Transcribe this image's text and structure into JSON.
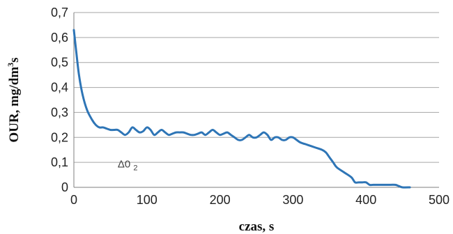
{
  "chart_data": {
    "type": "line",
    "xlabel": "czas, s",
    "ylabel_main": "OUR, mg/dm",
    "ylabel_sup": "3",
    "ylabel_tail": "s",
    "xlim": [
      0,
      500
    ],
    "ylim": [
      0,
      0.7
    ],
    "x_ticks": [
      0,
      100,
      200,
      300,
      400,
      500
    ],
    "x_tick_labels": [
      "0",
      "100",
      "200",
      "300",
      "400",
      "500"
    ],
    "y_ticks": [
      0,
      0.1,
      0.2,
      0.3,
      0.4,
      0.5,
      0.6,
      0.7
    ],
    "y_tick_labels": [
      "0",
      "0,1",
      "0,2",
      "0,3",
      "0,4",
      "0,5",
      "0,6",
      "0,7"
    ],
    "grid": "horizontal",
    "legend": "none",
    "annotation": {
      "text_main": "Δ0",
      "text_sub": "2",
      "x": 60,
      "y": 0.08
    },
    "colors": {
      "series": "#2e75b6",
      "grid": "#a6a6a6",
      "axis": "#7f7f7f"
    },
    "series": [
      {
        "x": [
          0,
          3,
          7,
          12,
          18,
          25,
          30,
          35,
          40,
          45,
          50,
          55,
          60,
          65,
          70,
          75,
          80,
          85,
          90,
          95,
          100,
          105,
          110,
          115,
          120,
          125,
          130,
          135,
          140,
          145,
          150,
          155,
          160,
          165,
          170,
          175,
          180,
          185,
          190,
          195,
          200,
          205,
          210,
          215,
          220,
          225,
          230,
          235,
          240,
          245,
          250,
          255,
          260,
          265,
          270,
          275,
          280,
          285,
          290,
          295,
          300,
          305,
          310,
          320,
          330,
          340,
          345,
          350,
          355,
          360,
          370,
          380,
          385,
          390,
          395,
          400,
          405,
          410,
          420,
          430,
          440,
          445,
          450,
          460
        ],
        "y": [
          0.63,
          0.55,
          0.45,
          0.37,
          0.31,
          0.27,
          0.25,
          0.24,
          0.24,
          0.235,
          0.23,
          0.23,
          0.23,
          0.22,
          0.21,
          0.22,
          0.24,
          0.23,
          0.22,
          0.225,
          0.24,
          0.23,
          0.21,
          0.22,
          0.23,
          0.22,
          0.21,
          0.215,
          0.22,
          0.22,
          0.22,
          0.215,
          0.21,
          0.21,
          0.215,
          0.22,
          0.21,
          0.22,
          0.23,
          0.22,
          0.21,
          0.215,
          0.22,
          0.21,
          0.2,
          0.19,
          0.19,
          0.2,
          0.21,
          0.2,
          0.2,
          0.21,
          0.22,
          0.21,
          0.19,
          0.2,
          0.2,
          0.19,
          0.19,
          0.2,
          0.2,
          0.19,
          0.18,
          0.17,
          0.16,
          0.15,
          0.14,
          0.12,
          0.1,
          0.08,
          0.06,
          0.04,
          0.02,
          0.02,
          0.02,
          0.02,
          0.01,
          0.01,
          0.01,
          0.01,
          0.01,
          0.005,
          0,
          0
        ]
      }
    ]
  }
}
